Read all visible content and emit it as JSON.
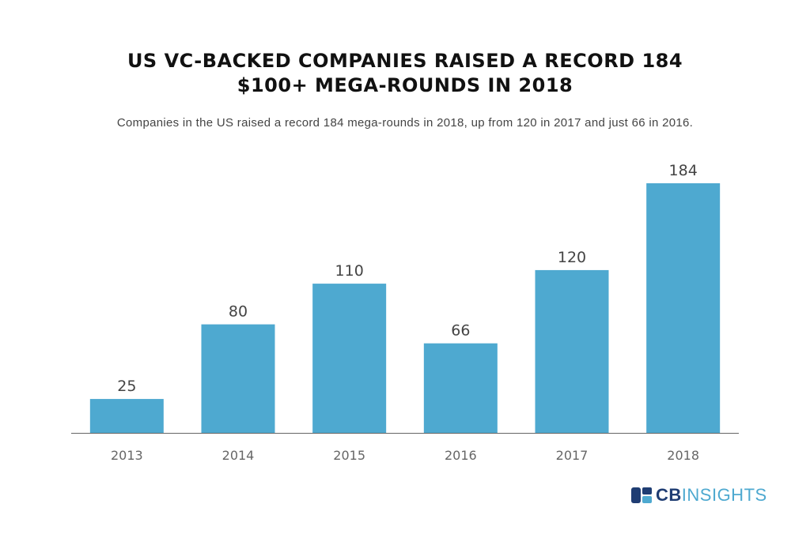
{
  "header": {
    "title_line1": "US VC-BACKED COMPANIES RAISED A RECORD 184",
    "title_line2": "$100+ MEGA-ROUNDS IN 2018",
    "subtitle": "Companies in the US raised a record 184 mega-rounds in 2018, up from 120 in 2017 and just 66 in 2016."
  },
  "chart_data": {
    "type": "bar",
    "categories": [
      "2013",
      "2014",
      "2015",
      "2016",
      "2017",
      "2018"
    ],
    "values": [
      25,
      80,
      110,
      66,
      120,
      184
    ],
    "data_labels": [
      "25",
      "80",
      "110",
      "66",
      "120",
      "184"
    ],
    "title": "US VC-BACKED COMPANIES RAISED A RECORD 184 $100+ MEGA-ROUNDS IN 2018",
    "subtitle": "Companies in the US raised a record 184 mega-rounds in 2018, up from 120 in 2017 and just 66 in 2016.",
    "xlabel": "",
    "ylabel": "",
    "ylim": [
      0,
      184
    ],
    "grid": false,
    "legend": "none",
    "bar_color": "#4ea9d0"
  },
  "logo": {
    "part1": "CB",
    "part2": "INSIGHTS",
    "color_primary": "#1f3d73",
    "color_secondary": "#4ea9d0"
  }
}
